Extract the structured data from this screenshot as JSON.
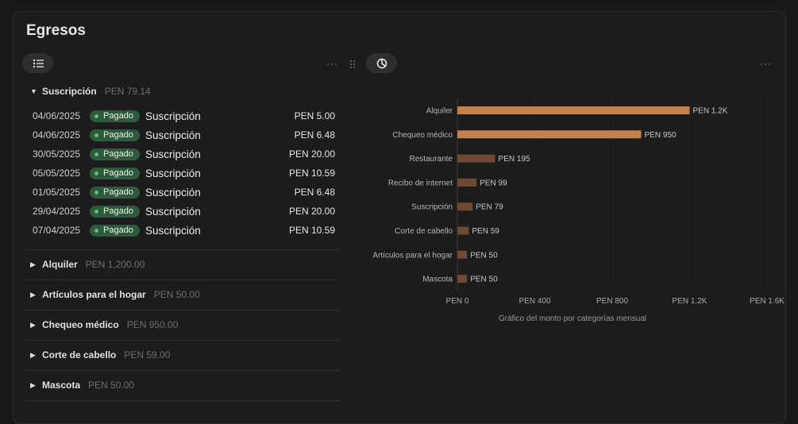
{
  "title": "Egresos",
  "list_view": {
    "expanded_group": {
      "name": "Suscripción",
      "total": "PEN 79.14"
    },
    "rows": [
      {
        "date": "04/06/2025",
        "status": "Pagado",
        "desc": "Suscripción",
        "amount": "PEN 5.00"
      },
      {
        "date": "04/06/2025",
        "status": "Pagado",
        "desc": "Suscripción",
        "amount": "PEN 6.48"
      },
      {
        "date": "30/05/2025",
        "status": "Pagado",
        "desc": "Suscripción",
        "amount": "PEN 20.00"
      },
      {
        "date": "05/05/2025",
        "status": "Pagado",
        "desc": "Suscripción",
        "amount": "PEN 10.59"
      },
      {
        "date": "01/05/2025",
        "status": "Pagado",
        "desc": "Suscripción",
        "amount": "PEN 6.48"
      },
      {
        "date": "29/04/2025",
        "status": "Pagado",
        "desc": "Suscripción",
        "amount": "PEN 20.00"
      },
      {
        "date": "07/04/2025",
        "status": "Pagado",
        "desc": "Suscripción",
        "amount": "PEN 10.59"
      }
    ],
    "groups": [
      {
        "name": "Alquiler",
        "total": "PEN 1,200.00"
      },
      {
        "name": "Artículos para el hogar",
        "total": "PEN 50.00"
      },
      {
        "name": "Chequeo médico",
        "total": "PEN 950.00"
      },
      {
        "name": "Corte de cabello",
        "total": "PEN 59.00"
      },
      {
        "name": "Mascota",
        "total": "PEN 50.00"
      }
    ],
    "more": "···"
  },
  "chart_view": {
    "more": "···"
  },
  "chart_data": {
    "type": "bar",
    "orientation": "horizontal",
    "categories": [
      "Alquiler",
      "Chequeo médico",
      "Restaurante",
      "Recibo de internet",
      "Suscripción",
      "Corte de cabello",
      "Artículos para el hogar",
      "Mascota"
    ],
    "values": [
      1200,
      950,
      195,
      99,
      79,
      59,
      50,
      50
    ],
    "data_labels": [
      "PEN 1.2K",
      "PEN 950",
      "PEN 195",
      "PEN 99",
      "PEN 79",
      "PEN 59",
      "PEN 50",
      "PEN 50"
    ],
    "xticks": [
      0,
      400,
      800,
      1200,
      1600
    ],
    "xtick_labels": [
      "PEN 0",
      "PEN 400",
      "PEN 800",
      "PEN 1.2K",
      "PEN 1.6K"
    ],
    "xlim": [
      0,
      1600
    ],
    "xlabel": "Gráfico del monto por categorías mensual",
    "colors": {
      "high": "#c4814a",
      "low": "#6e4a33"
    }
  }
}
